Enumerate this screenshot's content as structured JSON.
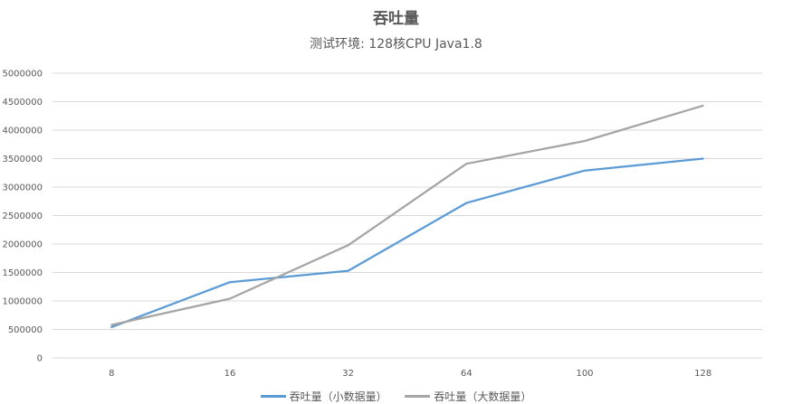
{
  "chart_data": {
    "type": "line",
    "title": "吞吐量",
    "subtitle": "测试环境: 128核CPU  Java1.8",
    "categories": [
      "8",
      "16",
      "32",
      "64",
      "100",
      "128"
    ],
    "ylim": [
      0,
      5000000
    ],
    "yticks": [
      "0",
      "500000",
      "1000000",
      "1500000",
      "2000000",
      "2500000",
      "3000000",
      "3500000",
      "4000000",
      "4500000",
      "5000000"
    ],
    "grid": true,
    "legend_position": "bottom",
    "series": [
      {
        "name": "吞吐量（小数据量）",
        "color": "#5b9bd5",
        "values": [
          540000,
          1330000,
          1530000,
          2720000,
          3290000,
          3500000
        ]
      },
      {
        "name": "吞吐量（大数据量）",
        "color": "#a5a5a5",
        "values": [
          580000,
          1040000,
          1980000,
          3410000,
          3810000,
          4430000
        ]
      }
    ]
  }
}
